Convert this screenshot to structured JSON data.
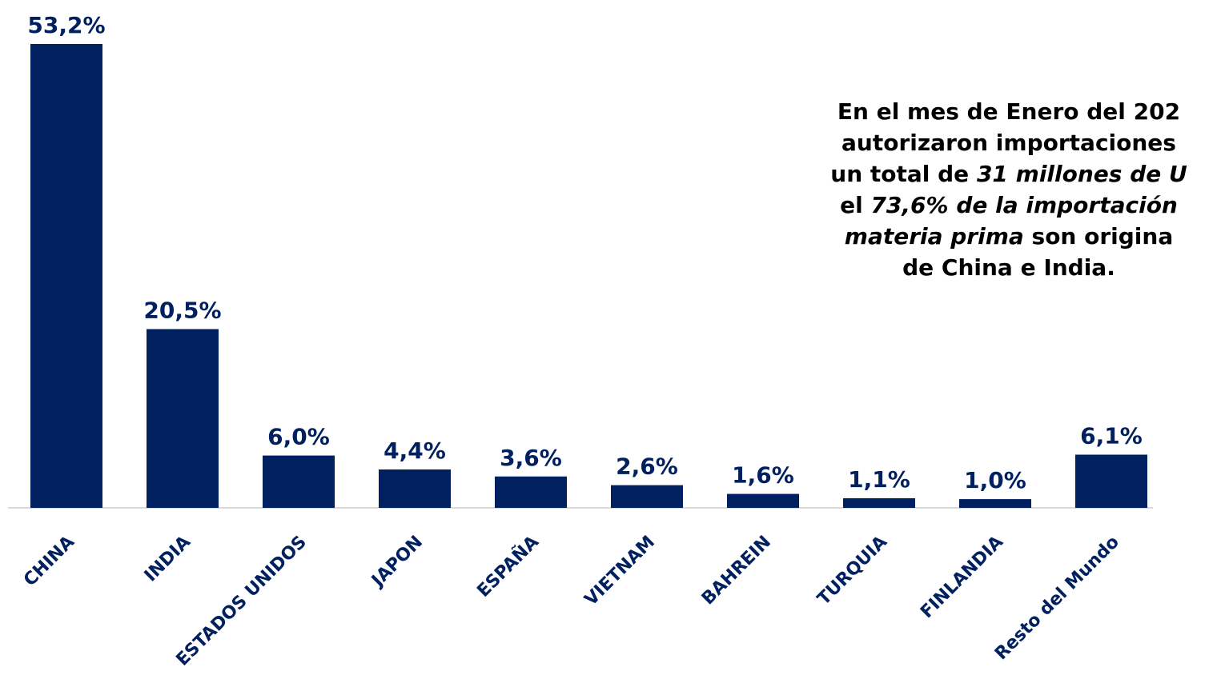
{
  "colors": {
    "bar": "#002060",
    "value_label": "#002060",
    "tick_label": "#002060",
    "axis_line": "#d9d9d9",
    "annotation_text": "#000000"
  },
  "chart_data": {
    "type": "bar",
    "title": "",
    "xlabel": "",
    "ylabel": "",
    "grid": false,
    "legend": "none",
    "categories": [
      "CHINA",
      "INDIA",
      "ESTADOS UNIDOS",
      "JAPON",
      "ESPAÑA",
      "VIETNAM",
      "BAHREIN",
      "TURQUIA",
      "FINLANDIA",
      "Resto del Mundo"
    ],
    "values": [
      53.2,
      20.5,
      6.0,
      4.4,
      3.6,
      2.6,
      1.6,
      1.1,
      1.0,
      6.1
    ],
    "data_labels": [
      "53,2%",
      "20,5%",
      "6,0%",
      "4,4%",
      "3,6%",
      "2,6%",
      "1,6%",
      "1,1%",
      "1,0%",
      "6,1%"
    ],
    "ylim": [
      0,
      53.2
    ]
  },
  "annotation": {
    "l1": "En el mes de Enero del 202",
    "l2": "autorizaron importaciones",
    "l3_pre": "un total de ",
    "l3_em": "31 millones de U",
    "l4_pre": "el ",
    "l4_em": "73,6% de la importación",
    "l5_em": "materia prima",
    "l5_post": " son origina",
    "l6": "de China e India."
  }
}
